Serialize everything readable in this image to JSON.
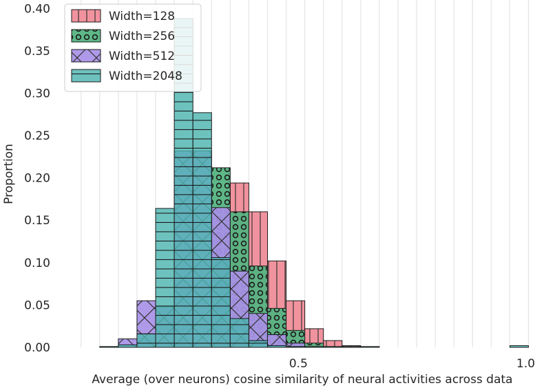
{
  "chart_data": {
    "type": "bar",
    "title": "",
    "xlabel": "Average (over neurons) cosine similarity of neural activities across data",
    "ylabel": "Proportion",
    "xlim": [
      -0.02,
      1.04
    ],
    "ylim": [
      0,
      0.41
    ],
    "grid": "vertical",
    "legend_position": "top-left",
    "x_ticks": [
      {
        "value": 0.5,
        "label": "0.5"
      },
      {
        "value": 1.0,
        "label": "1.0"
      }
    ],
    "y_ticks": [
      {
        "value": 0.0,
        "label": "0.00"
      },
      {
        "value": 0.05,
        "label": "0.05"
      },
      {
        "value": 0.1,
        "label": "0.10"
      },
      {
        "value": 0.15,
        "label": "0.15"
      },
      {
        "value": 0.2,
        "label": "0.20"
      },
      {
        "value": 0.25,
        "label": "0.25"
      },
      {
        "value": 0.3,
        "label": "0.30"
      },
      {
        "value": 0.35,
        "label": "0.35"
      },
      {
        "value": 0.4,
        "label": "0.40"
      }
    ],
    "bin_width": 0.041,
    "series": [
      {
        "name": "Width=128",
        "legend_label": "Width=128",
        "color": "#f08d99",
        "pattern": "vertical-lines",
        "bins": [
          {
            "x": 0.35,
            "value": 0.194
          },
          {
            "x": 0.391,
            "value": 0.16
          },
          {
            "x": 0.432,
            "value": 0.102
          },
          {
            "x": 0.473,
            "value": 0.055
          },
          {
            "x": 0.514,
            "value": 0.022
          },
          {
            "x": 0.555,
            "value": 0.008
          },
          {
            "x": 0.596,
            "value": 0.002
          }
        ]
      },
      {
        "name": "Width=256",
        "legend_label": "Width=256",
        "color": "#55b380",
        "pattern": "circles",
        "bins": [
          {
            "x": 0.309,
            "value": 0.212
          },
          {
            "x": 0.35,
            "value": 0.16
          },
          {
            "x": 0.391,
            "value": 0.096
          },
          {
            "x": 0.432,
            "value": 0.046
          },
          {
            "x": 0.473,
            "value": 0.02
          },
          {
            "x": 0.514,
            "value": 0.005
          }
        ]
      },
      {
        "name": "Width=512",
        "legend_label": "Width=512",
        "color": "#a892e8",
        "pattern": "crosses",
        "bins": [
          {
            "x": 0.104,
            "value": 0.01
          },
          {
            "x": 0.145,
            "value": 0.055
          },
          {
            "x": 0.186,
            "value": 0.048
          },
          {
            "x": 0.227,
            "value": 0.232
          },
          {
            "x": 0.268,
            "value": 0.232
          },
          {
            "x": 0.309,
            "value": 0.165
          },
          {
            "x": 0.35,
            "value": 0.09
          },
          {
            "x": 0.391,
            "value": 0.04
          },
          {
            "x": 0.432,
            "value": 0.015
          },
          {
            "x": 0.473,
            "value": 0.005
          }
        ]
      },
      {
        "name": "Width=2048",
        "legend_label": "Width=2048",
        "color": "#4db5b0",
        "pattern": "grid",
        "bins": [
          {
            "x": 0.063,
            "value": 0.001
          },
          {
            "x": 0.104,
            "value": 0.003
          },
          {
            "x": 0.145,
            "value": 0.016
          },
          {
            "x": 0.186,
            "value": 0.164
          },
          {
            "x": 0.227,
            "value": 0.388
          },
          {
            "x": 0.268,
            "value": 0.277
          },
          {
            "x": 0.309,
            "value": 0.106
          },
          {
            "x": 0.35,
            "value": 0.034
          },
          {
            "x": 0.391,
            "value": 0.008
          },
          {
            "x": 0.432,
            "value": 0.002
          },
          {
            "x": 0.473,
            "value": 0.001
          },
          {
            "x": 0.514,
            "value": 0.001
          },
          {
            "x": 0.555,
            "value": 0.001
          },
          {
            "x": 0.596,
            "value": 0.001
          },
          {
            "x": 0.637,
            "value": 0.001
          },
          {
            "x": 0.965,
            "value": 0.002
          }
        ]
      }
    ]
  }
}
